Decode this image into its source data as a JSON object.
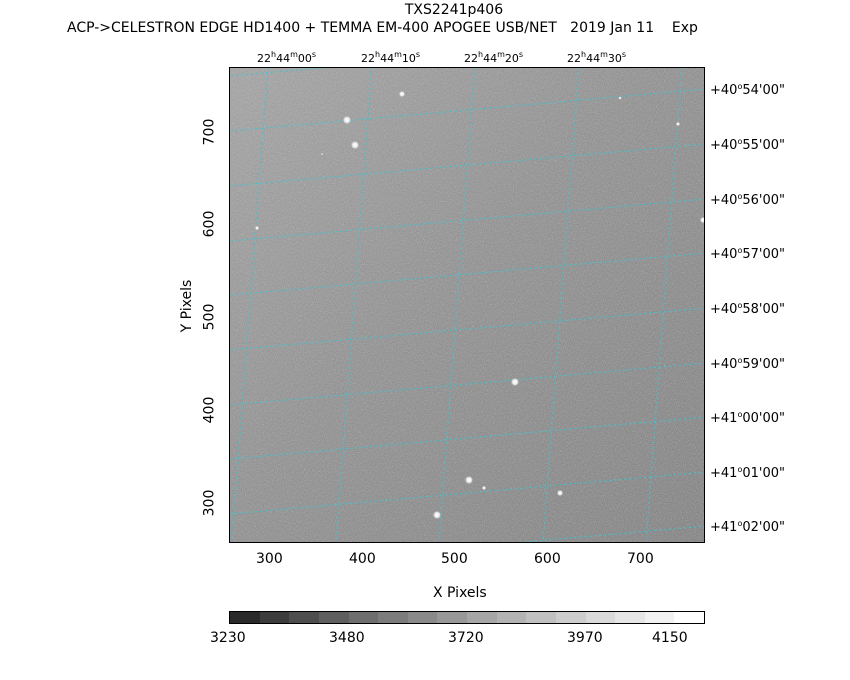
{
  "header": {
    "object": "TXS2241p406",
    "info": "ACP->CELESTRON EDGE HD1400 + TEMMA EM-400 APOGEE USB/NET   2019 Jan 11    Exp"
  },
  "axes": {
    "xlabel": "X Pixels",
    "ylabel": "Y Pixels",
    "x_ticks": [
      "300",
      "400",
      "500",
      "600",
      "700"
    ],
    "y_ticks": [
      "700",
      "600",
      "500",
      "400",
      "300"
    ]
  },
  "ra_ticks": [
    {
      "h": "22",
      "m": "44",
      "s": "00"
    },
    {
      "h": "22",
      "m": "44",
      "s": "10"
    },
    {
      "h": "22",
      "m": "44",
      "s": "20"
    },
    {
      "h": "22",
      "m": "44",
      "s": "30"
    }
  ],
  "dec_ticks": [
    {
      "sign": "+",
      "deg": "40",
      "min": "54",
      "sec": "00"
    },
    {
      "sign": "+",
      "deg": "40",
      "min": "55",
      "sec": "00"
    },
    {
      "sign": "+",
      "deg": "40",
      "min": "56",
      "sec": "00"
    },
    {
      "sign": "+",
      "deg": "40",
      "min": "57",
      "sec": "00"
    },
    {
      "sign": "+",
      "deg": "40",
      "min": "58",
      "sec": "00"
    },
    {
      "sign": "+",
      "deg": "40",
      "min": "59",
      "sec": "00"
    },
    {
      "sign": "+",
      "deg": "41",
      "min": "00",
      "sec": "00"
    },
    {
      "sign": "+",
      "deg": "41",
      "min": "01",
      "sec": "00"
    },
    {
      "sign": "+",
      "deg": "41",
      "min": "02",
      "sec": "00"
    }
  ],
  "colorbar": {
    "labels": [
      "3230",
      "3480",
      "3720",
      "3970",
      "4150"
    ],
    "colors": [
      "#2a2a2a",
      "#3c3c3c",
      "#4e4e4e",
      "#5f5f5f",
      "#6e6e6e",
      "#7c7c7c",
      "#8a8a8a",
      "#989898",
      "#a6a6a6",
      "#b3b3b3",
      "#c0c0c0",
      "#cdcdcd",
      "#dadada",
      "#e6e6e6",
      "#f2f2f2",
      "#ffffff"
    ]
  },
  "colors": {
    "grid": "#33c8d8",
    "background_image": "#888888"
  }
}
